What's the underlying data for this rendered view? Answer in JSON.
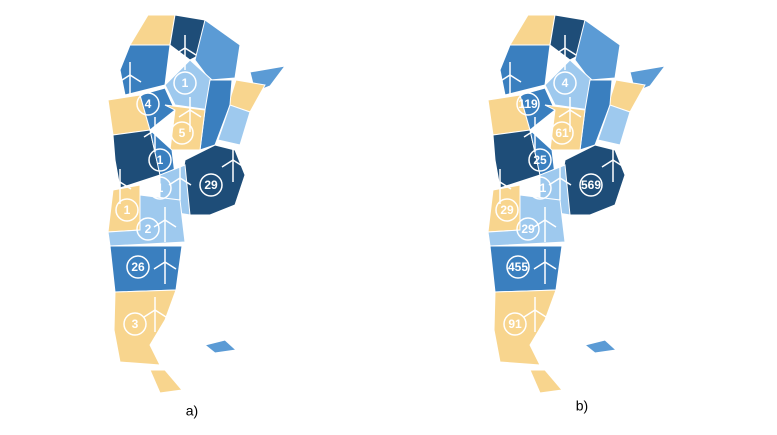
{
  "maps": [
    {
      "caption": "a)",
      "markers": [
        1,
        4,
        5,
        1,
        1,
        29,
        1,
        2,
        26,
        3
      ]
    },
    {
      "caption": "b)",
      "markers": [
        4,
        119,
        61,
        25,
        11,
        569,
        29,
        29,
        455,
        91
      ]
    }
  ]
}
